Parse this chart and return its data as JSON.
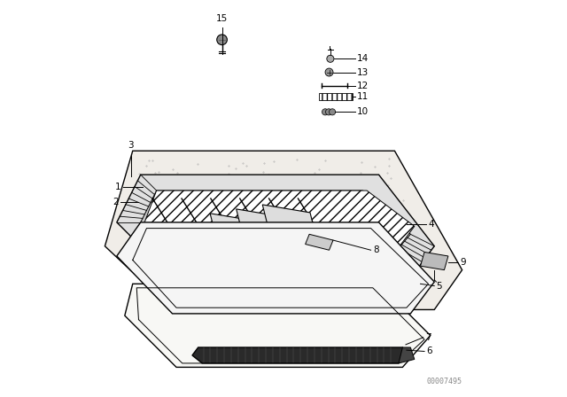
{
  "background_color": "#ffffff",
  "line_color": "#000000",
  "label_color": "#000000",
  "watermark": "00007495",
  "figsize": [
    6.4,
    4.48
  ],
  "dpi": 100
}
